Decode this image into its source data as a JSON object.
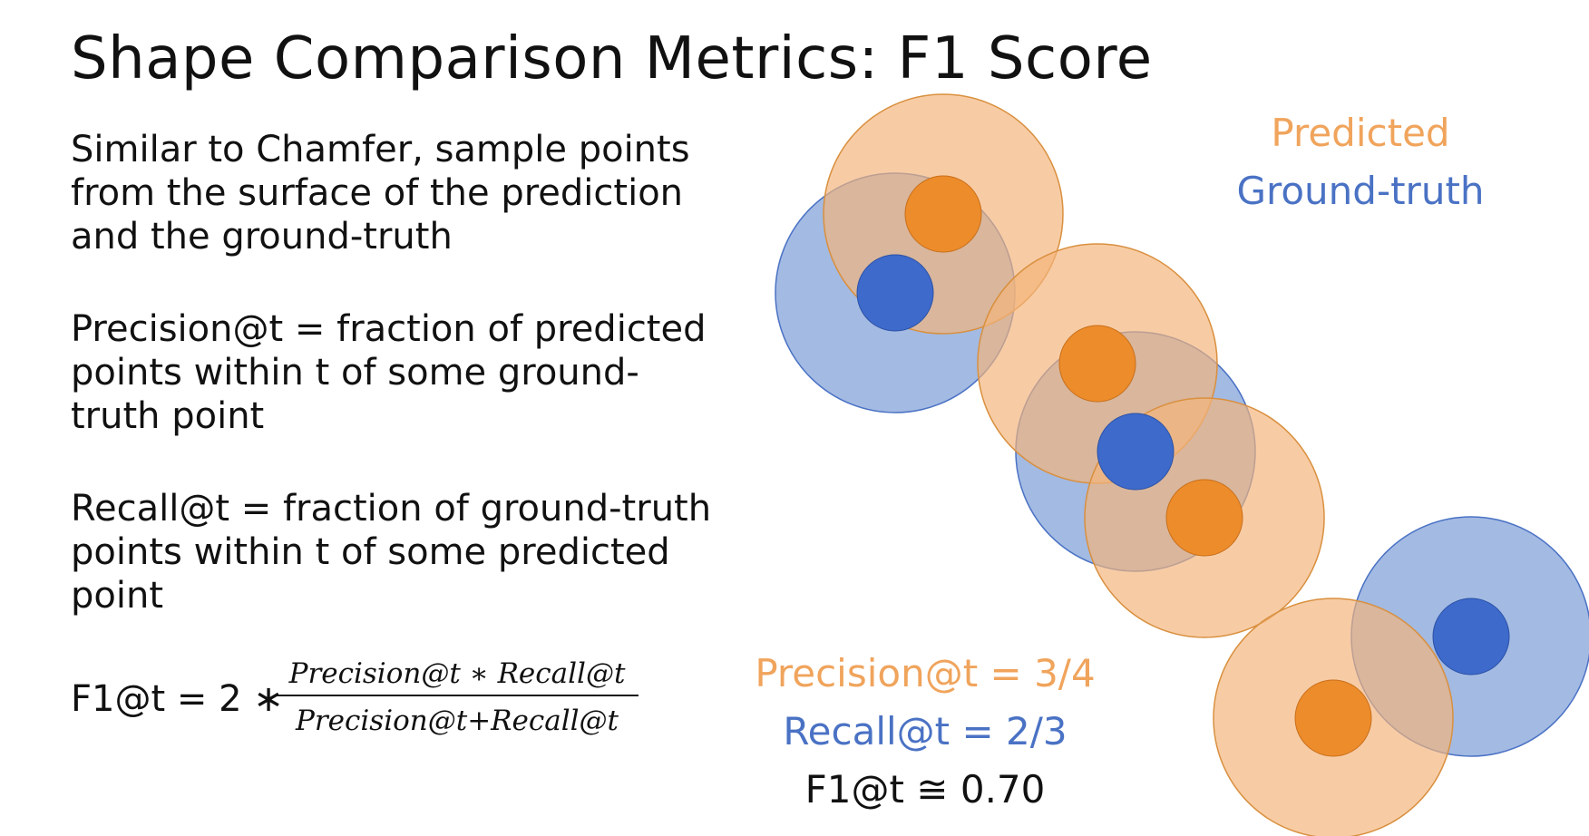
{
  "title": "Shape Comparison Metrics: F1 Score",
  "paragraphs": [
    {
      "lines": [
        "Similar to Chamfer, sample points",
        "from the surface of the prediction",
        "and the ground-truth"
      ]
    },
    {
      "lines": [
        "Precision@t = fraction of predicted",
        "points within t of some ground-",
        "truth point"
      ]
    },
    {
      "lines": [
        "Recall@t = fraction of ground-truth",
        "points within t of some predicted",
        "point"
      ]
    }
  ],
  "formula": {
    "lhs": "F1@t = 2 ∗",
    "numerator": "Precision@t ∗ Recall@t",
    "denominator": "Precision@t+Recall@t"
  },
  "legend": {
    "predicted": "Predicted",
    "ground_truth": "Ground-truth"
  },
  "metrics": {
    "precision": "Precision@t = 3/4",
    "recall": "Recall@t = 2/3",
    "f1": "F1@t ≅ 0.70"
  },
  "colors": {
    "predicted_fill": "#f3b47a",
    "predicted_point": "#ed8c2b",
    "predicted_text": "#f0a45c",
    "ground_truth_fill": "#7f9fd8",
    "ground_truth_point": "#3d6acb",
    "ground_truth_text": "#4a72c4"
  }
}
